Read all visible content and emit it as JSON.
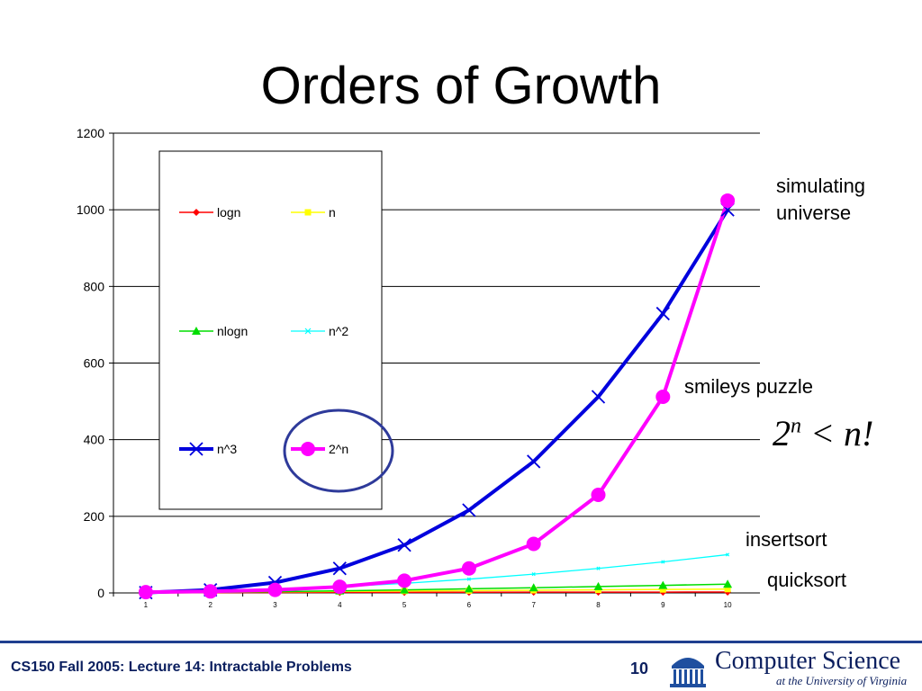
{
  "slide": {
    "title": "Orders of Growth"
  },
  "annotations": {
    "simulating": "simulating",
    "universe": "universe",
    "smileys": "smileys puzzle",
    "insertsort": "insertsort",
    "quicksort": "quicksort",
    "formula_base": "2",
    "formula_exp": "n",
    "formula_rest": "< n!"
  },
  "footer": {
    "lecture": "CS150 Fall 2005: Lecture 14: Intractable Problems",
    "page": "10",
    "logo_main": "Computer Science",
    "logo_sub": "at the University of Virginia"
  },
  "colors": {
    "logn": "#ff0000",
    "n": "#ffff00",
    "nlogn": "#00dd00",
    "n2": "#00ffff",
    "n3": "#0000dd",
    "2n": "#ff00ff",
    "circle": "#2e3a9a"
  },
  "chart_data": {
    "type": "line",
    "title": "",
    "xlabel": "",
    "ylabel": "",
    "categories": [
      "1",
      "2",
      "3",
      "4",
      "5",
      "6",
      "7",
      "8",
      "9",
      "10"
    ],
    "ylim": [
      0,
      1200
    ],
    "yticks": [
      0,
      200,
      400,
      600,
      800,
      1000,
      1200
    ],
    "grid": true,
    "legend": "box on left inside plot area",
    "series": [
      {
        "name": "logn",
        "key": "logn",
        "marker": "diamond",
        "values": [
          0,
          0.69,
          1.1,
          1.39,
          1.61,
          1.79,
          1.95,
          2.08,
          2.2,
          2.3
        ]
      },
      {
        "name": "n",
        "key": "n",
        "marker": "square",
        "values": [
          1,
          2,
          3,
          4,
          5,
          6,
          7,
          8,
          9,
          10
        ]
      },
      {
        "name": "nlogn",
        "key": "nlogn",
        "marker": "triangle",
        "values": [
          0,
          1.39,
          3.3,
          5.55,
          8.05,
          10.75,
          13.62,
          16.64,
          19.78,
          23.03
        ]
      },
      {
        "name": "n^2",
        "key": "n2",
        "marker": "x",
        "values": [
          1,
          4,
          9,
          16,
          25,
          36,
          49,
          64,
          81,
          100
        ]
      },
      {
        "name": "n^3",
        "key": "n3",
        "marker": "star",
        "values": [
          1,
          8,
          27,
          64,
          125,
          216,
          343,
          512,
          729,
          1000
        ]
      },
      {
        "name": "2^n",
        "key": "2n",
        "marker": "circle",
        "values": [
          2,
          4,
          8,
          16,
          32,
          64,
          128,
          256,
          512,
          1024
        ]
      }
    ]
  }
}
